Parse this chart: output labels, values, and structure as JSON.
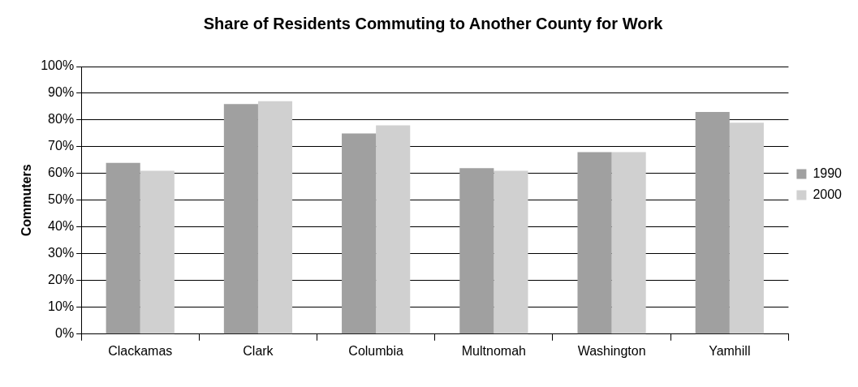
{
  "chart_data": {
    "type": "bar",
    "title": "Share of Residents Commuting to Another County for Work",
    "ylabel": "Commuters",
    "categories": [
      "Clackamas",
      "Clark",
      "Columbia",
      "Multnomah",
      "Washington",
      "Yamhill"
    ],
    "series": [
      {
        "name": "1990",
        "color": "#a0a0a0",
        "values": [
          64,
          86,
          75,
          62,
          68,
          83
        ]
      },
      {
        "name": "2000",
        "color": "#d0d0d0",
        "values": [
          61,
          87,
          78,
          61,
          68,
          79
        ]
      }
    ],
    "ylim": [
      0,
      100
    ],
    "yticks": [
      {
        "value": 0,
        "label": "0%"
      },
      {
        "value": 10,
        "label": "10%"
      },
      {
        "value": 20,
        "label": "20%"
      },
      {
        "value": 30,
        "label": "30%"
      },
      {
        "value": 40,
        "label": "40%"
      },
      {
        "value": 50,
        "label": "50%"
      },
      {
        "value": 60,
        "label": "60%"
      },
      {
        "value": 70,
        "label": "70%"
      },
      {
        "value": 80,
        "label": "80%"
      },
      {
        "value": 90,
        "label": "90%"
      },
      {
        "value": 100,
        "label": "100%"
      }
    ],
    "grid": "y",
    "legend": "right"
  }
}
